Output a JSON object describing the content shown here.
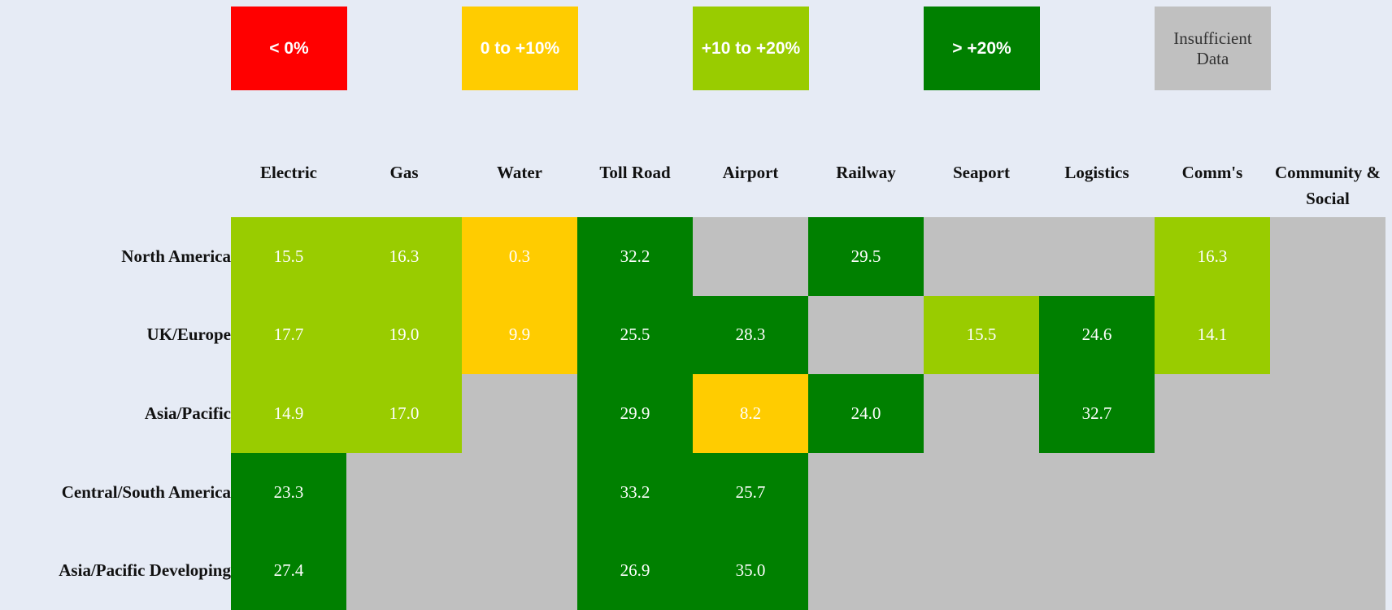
{
  "chart_data": {
    "type": "heatmap",
    "legend": [
      {
        "label": "< 0%",
        "color": "#ff0000"
      },
      {
        "label": "0 to +10%",
        "color": "#ffcc00"
      },
      {
        "label": "+10 to +20%",
        "color": "#99cc00"
      },
      {
        "label": "> +20%",
        "color": "#008000"
      },
      {
        "label": "Insufficient Data",
        "color": "#c0c0c0"
      }
    ],
    "color_breaks": [
      0,
      10,
      20
    ],
    "columns": [
      "Electric",
      "Gas",
      "Water",
      "Toll Road",
      "Airport",
      "Railway",
      "Seaport",
      "Logistics",
      "Comm's",
      "Community & Social"
    ],
    "rows": [
      "North America",
      "UK/Europe",
      "Asia/Pacific",
      "Central/South America",
      "Asia/Pacific Developing"
    ],
    "values": [
      [
        15.5,
        16.3,
        0.3,
        32.2,
        null,
        29.5,
        null,
        null,
        16.3,
        null
      ],
      [
        17.7,
        19,
        9.9,
        25.5,
        28.3,
        null,
        15.5,
        24.6,
        14.1,
        null
      ],
      [
        14.9,
        17,
        null,
        29.9,
        8.2,
        24,
        null,
        32.7,
        null,
        null
      ],
      [
        23.3,
        null,
        null,
        33.2,
        25.7,
        null,
        null,
        null,
        null,
        null
      ],
      [
        27.4,
        null,
        null,
        26.9,
        35,
        null,
        null,
        null,
        null,
        null
      ]
    ],
    "value_labels": [
      [
        "15.5",
        "16.3",
        "0.3",
        "32.2",
        null,
        "29.5",
        null,
        null,
        "16.3",
        null
      ],
      [
        "17.7",
        "19.0",
        "9.9",
        "25.5",
        "28.3",
        null,
        "15.5",
        "24.6",
        "14.1",
        null
      ],
      [
        "14.9",
        "17.0",
        null,
        "29.9",
        "8.2",
        "24.0",
        null,
        "32.7",
        null,
        null
      ],
      [
        "23.3",
        null,
        null,
        "33.2",
        "25.7",
        null,
        null,
        null,
        null,
        null
      ],
      [
        "27.4",
        null,
        null,
        "26.9",
        "35.0",
        null,
        null,
        null,
        null,
        null
      ]
    ]
  }
}
